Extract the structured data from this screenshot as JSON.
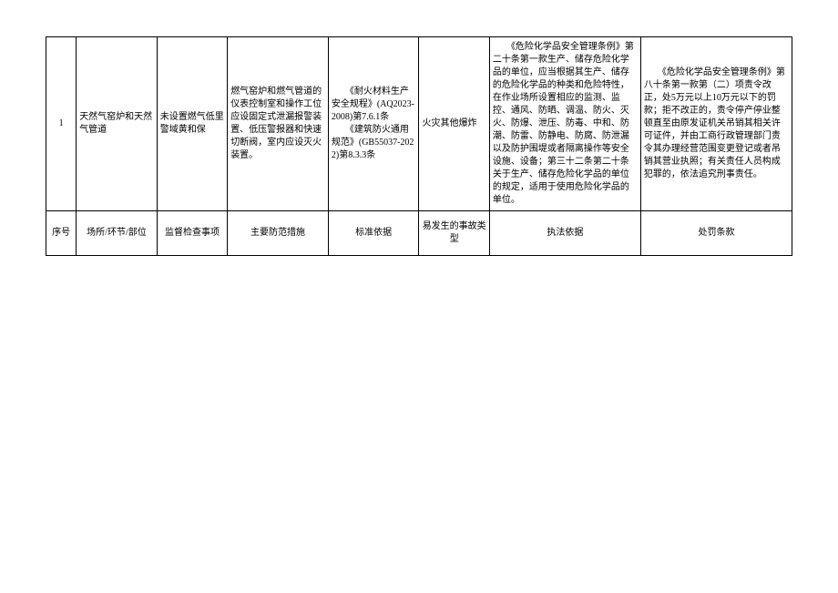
{
  "rows": [
    {
      "seq": "1",
      "location": "天然气窑炉和天然气管道",
      "inspection": "未设置燃气低里警域黄和保",
      "measures": "燃气窑炉和燃气管道的仪表控制室和操作工位应设固定式泄漏报警装置、低压警报器和快速切断阀，室内应设灭火装置。",
      "standard_line1": "　　《耐火材料生产安全规程》(AQ2023-2008)第7.6.1条",
      "standard_line2": "　　《建筑防火通用规范》(GB55037-2022)第8.3.3条",
      "accident": "火灾其他爆炸",
      "basis": "　　《危险化学品安全管理条例》第二十条第一款生产、储存危险化学品的单位，应当根据其生产、储存的危险化学品的种类和危险特性，在作业场所设置相应的监测、监控、通风、防晒、调温、防火、灭火、防爆、泄压、防毒、中和、防潮、防雷、防静电、防腐、防泄漏以及防护围堤或者隔离操作等安全设施、设备；第三十二条第二十条关于生产、储存危险化学品的单位的规定，适用于使用危险化学品的单位。",
      "penalty": "　　《危险化学品安全管理条例》第八十条第一款第（二）项责令改正，处5万元以上10万元以下的罚款；拒不改正的，责令停产停业整顿直至由原发证机关吊销其相关许可证件，并由工商行政管理部门责令其办理经营范围变更登记或者吊销其营业执照；有关责任人员构成犯罪的，依法追究刑事责任。"
    }
  ],
  "headers": {
    "c1": "序号",
    "c2": "场所/环节/部位",
    "c3": "监督检查事项",
    "c4": "主要防范措施",
    "c5": "标准依据",
    "c6": "易发生的事故类型",
    "c7": "执法依据",
    "c8": "处罚条款"
  }
}
